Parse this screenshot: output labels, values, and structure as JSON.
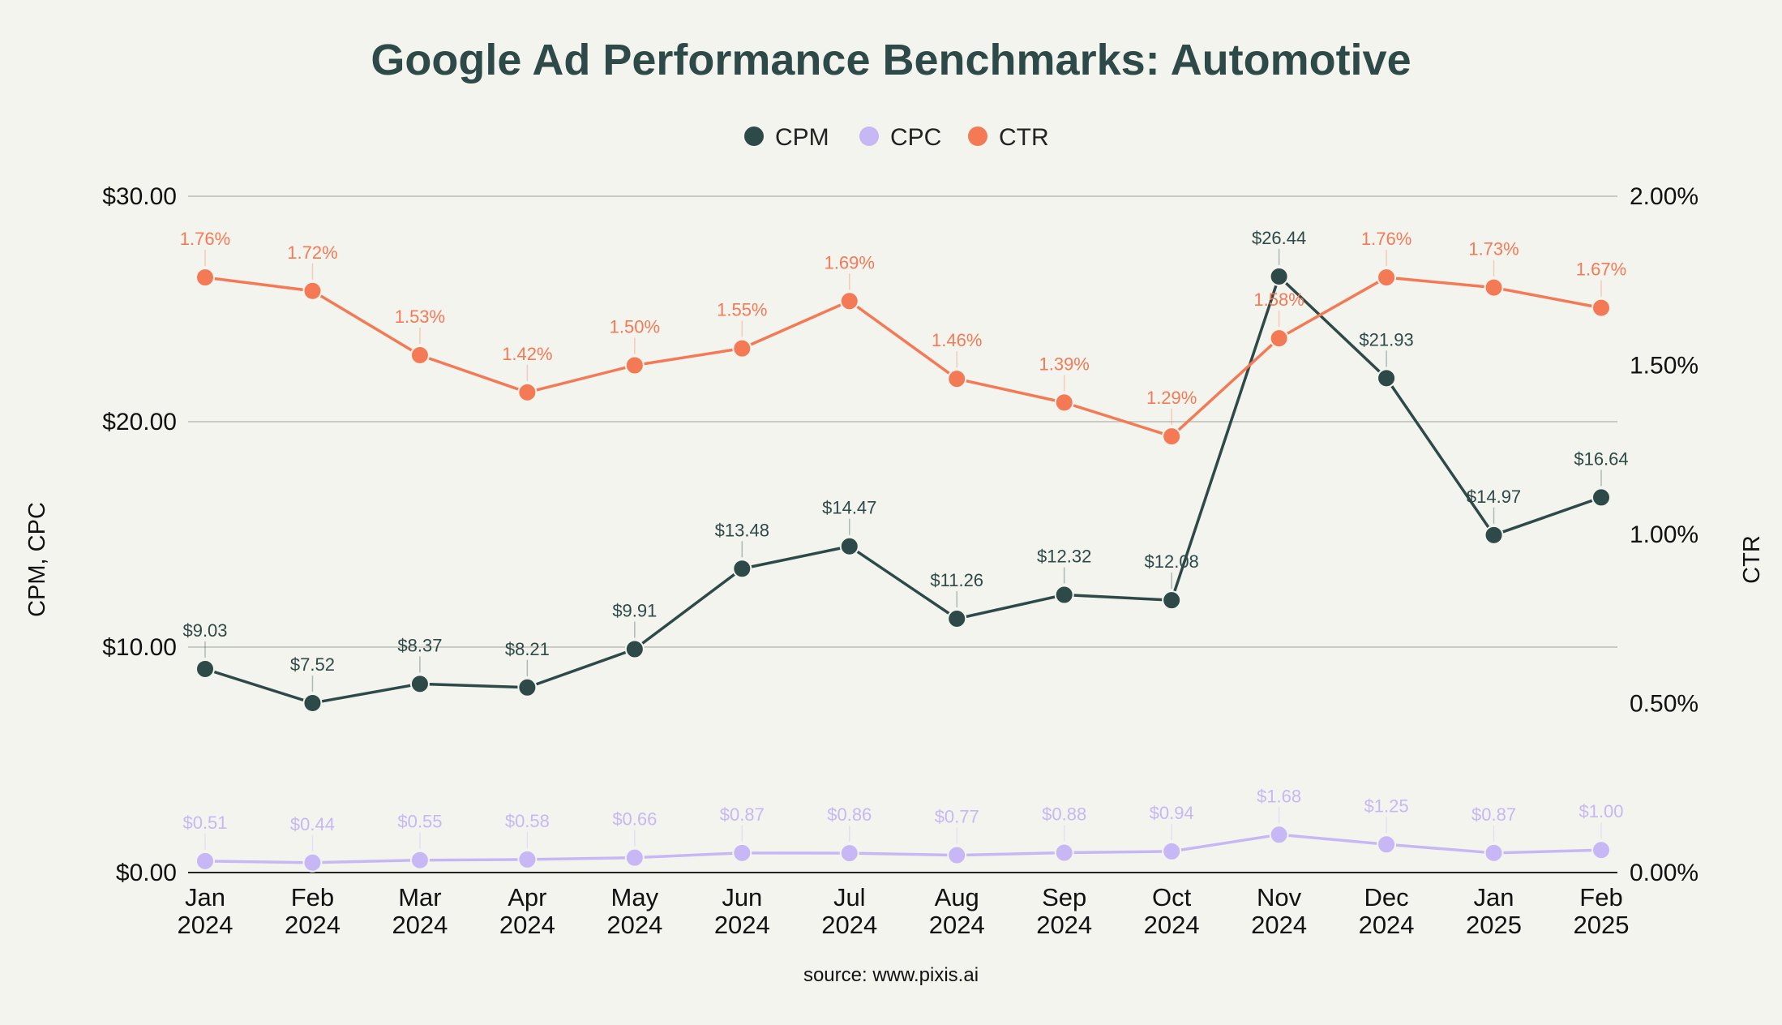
{
  "chart_data": {
    "type": "line",
    "title": "Google Ad Performance Benchmarks: Automotive",
    "source": "source: www.pixis.ai",
    "ylabel_left": "CPM, CPC",
    "ylabel_right": "CTR",
    "ylim_left": [
      0,
      30
    ],
    "ylim_right": [
      0,
      2
    ],
    "yticks_left": [
      "$0.00",
      "$10.00",
      "$20.00",
      "$30.00"
    ],
    "yticks_right": [
      "0.00%",
      "0.50%",
      "1.00%",
      "1.50%",
      "2.00%"
    ],
    "grid": true,
    "legend_position": "top-center",
    "categories": [
      [
        "Jan",
        "2024"
      ],
      [
        "Feb",
        "2024"
      ],
      [
        "Mar",
        "2024"
      ],
      [
        "Apr",
        "2024"
      ],
      [
        "May",
        "2024"
      ],
      [
        "Jun",
        "2024"
      ],
      [
        "Jul",
        "2024"
      ],
      [
        "Aug",
        "2024"
      ],
      [
        "Sep",
        "2024"
      ],
      [
        "Oct",
        "2024"
      ],
      [
        "Nov",
        "2024"
      ],
      [
        "Dec",
        "2024"
      ],
      [
        "Jan",
        "2025"
      ],
      [
        "Feb",
        "2025"
      ]
    ],
    "series": [
      {
        "name": "CPM",
        "axis": "left",
        "color": "#2e4a48",
        "values": [
          9.03,
          7.52,
          8.37,
          8.21,
          9.91,
          13.48,
          14.47,
          11.26,
          12.32,
          12.08,
          26.44,
          21.93,
          14.97,
          16.64
        ],
        "labels": [
          "$9.03",
          "$7.52",
          "$8.37",
          "$8.21",
          "$9.91",
          "$13.48",
          "$14.47",
          "$11.26",
          "$12.32",
          "$12.08",
          "$26.44",
          "$21.93",
          "$14.97",
          "$16.64"
        ]
      },
      {
        "name": "CPC",
        "axis": "left",
        "color": "#c7b8f5",
        "values": [
          0.51,
          0.44,
          0.55,
          0.58,
          0.66,
          0.87,
          0.86,
          0.77,
          0.88,
          0.94,
          1.68,
          1.25,
          0.87,
          1.0
        ],
        "labels": [
          "$0.51",
          "$0.44",
          "$0.55",
          "$0.58",
          "$0.66",
          "$0.87",
          "$0.86",
          "$0.77",
          "$0.88",
          "$0.94",
          "$1.68",
          "$1.25",
          "$0.87",
          "$1.00"
        ]
      },
      {
        "name": "CTR",
        "axis": "right",
        "color": "#f47a56",
        "values": [
          1.76,
          1.72,
          1.53,
          1.42,
          1.5,
          1.55,
          1.69,
          1.46,
          1.39,
          1.29,
          1.58,
          1.76,
          1.73,
          1.67
        ],
        "labels": [
          "1.76%",
          "1.72%",
          "1.53%",
          "1.42%",
          "1.50%",
          "1.55%",
          "1.69%",
          "1.46%",
          "1.39%",
          "1.29%",
          "1.58%",
          "1.76%",
          "1.73%",
          "1.67%"
        ]
      }
    ]
  }
}
